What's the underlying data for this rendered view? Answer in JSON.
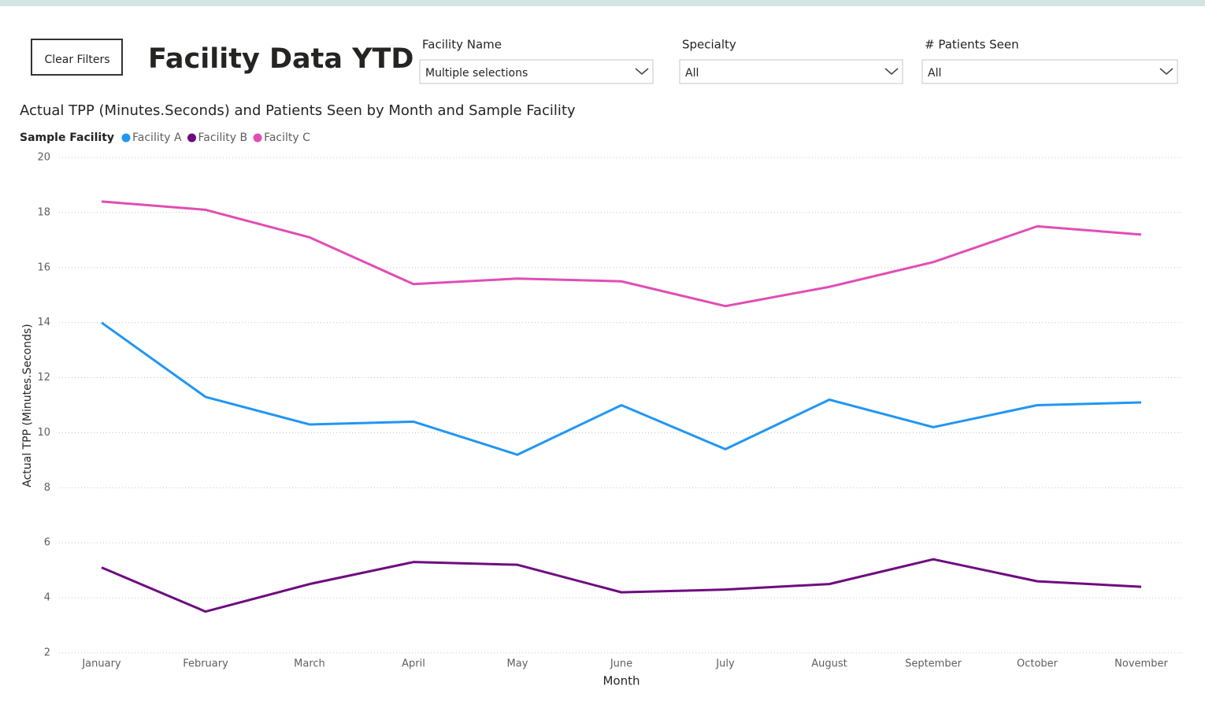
{
  "header": {
    "button": "Clear Filters",
    "title": "Facility Data YTD"
  },
  "slicers": [
    {
      "label": "Facility Name",
      "value": "Multiple selections"
    },
    {
      "label": "Specialty",
      "value": "All"
    },
    {
      "label": "# Patients Seen",
      "value": "All"
    }
  ],
  "chart_data": {
    "type": "line",
    "title": "Actual TPP (Minutes.Seconds) and Patients Seen by Month and Sample Facility",
    "legend_title": "Sample Facility",
    "x_label": "Month",
    "y_label": "Actual TPP (Minutes.Seconds)",
    "categories": [
      "January",
      "February",
      "March",
      "April",
      "May",
      "June",
      "July",
      "August",
      "September",
      "October",
      "November"
    ],
    "series": [
      {
        "name": "Facility A",
        "color": "#2196f3",
        "values": [
          14.0,
          11.3,
          10.3,
          10.4,
          9.2,
          11.0,
          9.4,
          11.2,
          10.2,
          11.0,
          11.1
        ]
      },
      {
        "name": "Facility B",
        "color": "#6e0b7f",
        "values": [
          5.1,
          3.5,
          4.5,
          5.3,
          5.2,
          4.2,
          4.3,
          4.5,
          5.4,
          4.6,
          4.4
        ]
      },
      {
        "name": "Facilty C",
        "color": "#e04eb5",
        "values": [
          18.4,
          18.1,
          17.1,
          15.4,
          15.6,
          15.5,
          14.6,
          15.3,
          16.2,
          17.5,
          17.2
        ]
      }
    ],
    "ylim": [
      2,
      20
    ],
    "yticks": [
      2,
      4,
      6,
      8,
      10,
      12,
      14,
      16,
      18,
      20
    ],
    "grid": true
  }
}
